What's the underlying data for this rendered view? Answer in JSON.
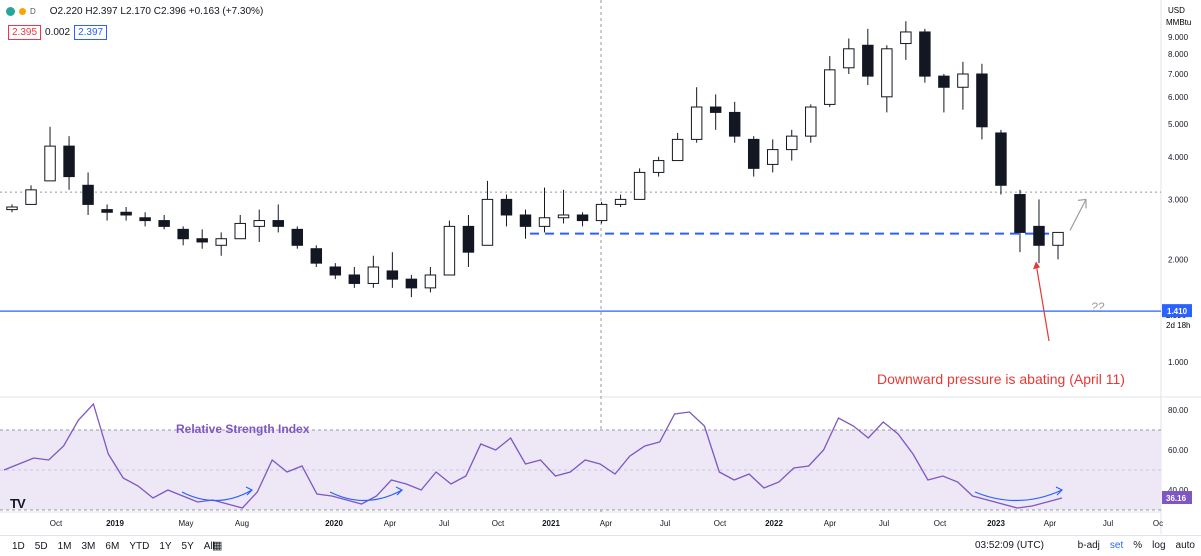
{
  "header": {
    "interval": "D",
    "ohlc": "O2.220 H2.397 L2.170 C2.396 +0.163 (+7.30%)",
    "sell_price": "2.395",
    "spread": "0.002",
    "buy_price": "2.397"
  },
  "price_axis": {
    "currency": "USD",
    "unit": "MMBtu",
    "ticks": [
      "9.000",
      "8.000",
      "7.000",
      "6.000",
      "5.000",
      "4.000",
      "3.000",
      "2.000",
      "1.000"
    ],
    "current_price": "2.396",
    "countdown": "2d 18h",
    "support_label": "1.410"
  },
  "rsi_axis": {
    "ticks": [
      "80.00",
      "60.00",
      "40.00"
    ],
    "current_value": "36.16"
  },
  "time_axis": {
    "labels": [
      "Oct",
      "2019",
      "May",
      "Aug",
      "2020",
      "Apr",
      "Jul",
      "Oct",
      "2021",
      "Apr",
      "Jul",
      "Oct",
      "2022",
      "Apr",
      "Jul",
      "Oct",
      "2023",
      "Apr",
      "Jul",
      "Oc"
    ]
  },
  "annotations": {
    "pressure_text": "Downward pressure is abating (April 11)",
    "rsi_label": "Relative Strength Index",
    "question": "??"
  },
  "toolbar": {
    "ranges": [
      "1D",
      "5D",
      "1M",
      "3M",
      "6M",
      "YTD",
      "1Y",
      "5Y",
      "All"
    ],
    "time": "03:52:09 (UTC)",
    "badj": "b-adj",
    "set": "set",
    "pct": "%",
    "log": "log",
    "auto": "auto"
  },
  "logo": "TV",
  "colors": {
    "up": "#131722",
    "down": "#131722",
    "rsi_line": "#7e57c2",
    "rsi_band": "#ede7f6",
    "support_line": "#2962ff",
    "annotation": "#e53935",
    "arrow_gray": "#9e9e9e"
  },
  "chart_data": [
    {
      "type": "candlestick",
      "title": "",
      "log_scale": true,
      "ylim": [
        0.8,
        10.5
      ],
      "reference_lines": {
        "resistance_dotted": 3.15,
        "support_dashed": 2.38,
        "support_solid": 1.41
      },
      "series": [
        {
          "date": "2018-09",
          "o": 2.8,
          "h": 2.9,
          "l": 2.75,
          "c": 2.85
        },
        {
          "date": "2018-10",
          "o": 2.9,
          "h": 3.3,
          "l": 2.9,
          "c": 3.2
        },
        {
          "date": "2018-11",
          "o": 3.4,
          "h": 4.9,
          "l": 3.4,
          "c": 4.3
        },
        {
          "date": "2018-12",
          "o": 4.3,
          "h": 4.6,
          "l": 3.2,
          "c": 3.5
        },
        {
          "date": "2019-01",
          "o": 3.3,
          "h": 3.6,
          "l": 2.7,
          "c": 2.9
        },
        {
          "date": "2019-02",
          "o": 2.8,
          "h": 2.9,
          "l": 2.6,
          "c": 2.75
        },
        {
          "date": "2019-03",
          "o": 2.75,
          "h": 2.85,
          "l": 2.6,
          "c": 2.7
        },
        {
          "date": "2019-04",
          "o": 2.65,
          "h": 2.75,
          "l": 2.5,
          "c": 2.6
        },
        {
          "date": "2019-05",
          "o": 2.6,
          "h": 2.7,
          "l": 2.45,
          "c": 2.5
        },
        {
          "date": "2019-06",
          "o": 2.45,
          "h": 2.5,
          "l": 2.2,
          "c": 2.3
        },
        {
          "date": "2019-07",
          "o": 2.3,
          "h": 2.45,
          "l": 2.15,
          "c": 2.25
        },
        {
          "date": "2019-08",
          "o": 2.2,
          "h": 2.4,
          "l": 2.05,
          "c": 2.3
        },
        {
          "date": "2019-09",
          "o": 2.3,
          "h": 2.7,
          "l": 2.3,
          "c": 2.55
        },
        {
          "date": "2019-10",
          "o": 2.5,
          "h": 2.8,
          "l": 2.25,
          "c": 2.6
        },
        {
          "date": "2019-11",
          "o": 2.6,
          "h": 2.9,
          "l": 2.4,
          "c": 2.5
        },
        {
          "date": "2019-12",
          "o": 2.45,
          "h": 2.5,
          "l": 2.15,
          "c": 2.2
        },
        {
          "date": "2020-01",
          "o": 2.15,
          "h": 2.2,
          "l": 1.9,
          "c": 1.95
        },
        {
          "date": "2020-02",
          "o": 1.9,
          "h": 1.95,
          "l": 1.75,
          "c": 1.8
        },
        {
          "date": "2020-03",
          "o": 1.8,
          "h": 1.9,
          "l": 1.65,
          "c": 1.7
        },
        {
          "date": "2020-04",
          "o": 1.7,
          "h": 2.05,
          "l": 1.65,
          "c": 1.9
        },
        {
          "date": "2020-05",
          "o": 1.85,
          "h": 2.1,
          "l": 1.65,
          "c": 1.75
        },
        {
          "date": "2020-06",
          "o": 1.75,
          "h": 1.8,
          "l": 1.55,
          "c": 1.65
        },
        {
          "date": "2020-07",
          "o": 1.65,
          "h": 1.9,
          "l": 1.6,
          "c": 1.8
        },
        {
          "date": "2020-08",
          "o": 1.8,
          "h": 2.6,
          "l": 1.8,
          "c": 2.5
        },
        {
          "date": "2020-09",
          "o": 2.5,
          "h": 2.7,
          "l": 1.9,
          "c": 2.1
        },
        {
          "date": "2020-10",
          "o": 2.2,
          "h": 3.4,
          "l": 2.2,
          "c": 3.0
        },
        {
          "date": "2020-11",
          "o": 3.0,
          "h": 3.1,
          "l": 2.5,
          "c": 2.7
        },
        {
          "date": "2020-12",
          "o": 2.7,
          "h": 2.8,
          "l": 2.3,
          "c": 2.5
        },
        {
          "date": "2021-01",
          "o": 2.5,
          "h": 3.25,
          "l": 2.4,
          "c": 2.65
        },
        {
          "date": "2021-02",
          "o": 2.65,
          "h": 3.2,
          "l": 2.55,
          "c": 2.7
        },
        {
          "date": "2021-03",
          "o": 2.7,
          "h": 2.75,
          "l": 2.5,
          "c": 2.6
        },
        {
          "date": "2021-04",
          "o": 2.6,
          "h": 2.95,
          "l": 2.55,
          "c": 2.9
        },
        {
          "date": "2021-05",
          "o": 2.9,
          "h": 3.1,
          "l": 2.85,
          "c": 3.0
        },
        {
          "date": "2021-06",
          "o": 3.0,
          "h": 3.7,
          "l": 3.0,
          "c": 3.6
        },
        {
          "date": "2021-07",
          "o": 3.6,
          "h": 4.0,
          "l": 3.5,
          "c": 3.9
        },
        {
          "date": "2021-08",
          "o": 3.9,
          "h": 4.7,
          "l": 3.9,
          "c": 4.5
        },
        {
          "date": "2021-09",
          "o": 4.5,
          "h": 6.4,
          "l": 4.4,
          "c": 5.6
        },
        {
          "date": "2021-10",
          "o": 5.6,
          "h": 6.1,
          "l": 4.8,
          "c": 5.4
        },
        {
          "date": "2021-11",
          "o": 5.4,
          "h": 5.8,
          "l": 4.4,
          "c": 4.6
        },
        {
          "date": "2021-12",
          "o": 4.5,
          "h": 4.6,
          "l": 3.5,
          "c": 3.7
        },
        {
          "date": "2022-01",
          "o": 3.8,
          "h": 4.5,
          "l": 3.6,
          "c": 4.2
        },
        {
          "date": "2022-02",
          "o": 4.2,
          "h": 4.8,
          "l": 3.9,
          "c": 4.6
        },
        {
          "date": "2022-03",
          "o": 4.6,
          "h": 5.7,
          "l": 4.4,
          "c": 5.6
        },
        {
          "date": "2022-04",
          "o": 5.7,
          "h": 7.9,
          "l": 5.6,
          "c": 7.2
        },
        {
          "date": "2022-05",
          "o": 7.3,
          "h": 8.9,
          "l": 7.0,
          "c": 8.3
        },
        {
          "date": "2022-06",
          "o": 8.5,
          "h": 9.5,
          "l": 6.5,
          "c": 6.9
        },
        {
          "date": "2022-07",
          "o": 6.0,
          "h": 8.5,
          "l": 5.4,
          "c": 8.3
        },
        {
          "date": "2022-08",
          "o": 8.6,
          "h": 10.0,
          "l": 7.7,
          "c": 9.3
        },
        {
          "date": "2022-09",
          "o": 9.3,
          "h": 9.5,
          "l": 6.6,
          "c": 6.9
        },
        {
          "date": "2022-10",
          "o": 6.9,
          "h": 7.0,
          "l": 5.4,
          "c": 6.4
        },
        {
          "date": "2022-11",
          "o": 6.4,
          "h": 7.6,
          "l": 5.5,
          "c": 7.0
        },
        {
          "date": "2022-12",
          "o": 7.0,
          "h": 7.5,
          "l": 4.5,
          "c": 4.9
        },
        {
          "date": "2023-01",
          "o": 4.7,
          "h": 4.8,
          "l": 3.1,
          "c": 3.3
        },
        {
          "date": "2023-02",
          "o": 3.1,
          "h": 3.2,
          "l": 2.1,
          "c": 2.4
        },
        {
          "date": "2023-03",
          "o": 2.5,
          "h": 3.0,
          "l": 1.95,
          "c": 2.2
        },
        {
          "date": "2023-04",
          "o": 2.2,
          "h": 2.4,
          "l": 2.0,
          "c": 2.4
        }
      ]
    },
    {
      "type": "line",
      "title": "Relative Strength Index",
      "ylim": [
        30,
        85
      ],
      "band": [
        30,
        70
      ],
      "midline": 50,
      "values": [
        50,
        53,
        56,
        55,
        62,
        75,
        83,
        58,
        46,
        42,
        36,
        40,
        37,
        34,
        35,
        33,
        31,
        39,
        55,
        49,
        52,
        38,
        37,
        35,
        33,
        37,
        45,
        43,
        40,
        49,
        43,
        47,
        63,
        60,
        66,
        53,
        55,
        47,
        49,
        55,
        53,
        48,
        57,
        62,
        64,
        78,
        79,
        72,
        49,
        45,
        48,
        41,
        44,
        51,
        52,
        60,
        76,
        72,
        66,
        74,
        68,
        58,
        45,
        47,
        44,
        37,
        35,
        33,
        31,
        32,
        34,
        36
      ]
    }
  ]
}
